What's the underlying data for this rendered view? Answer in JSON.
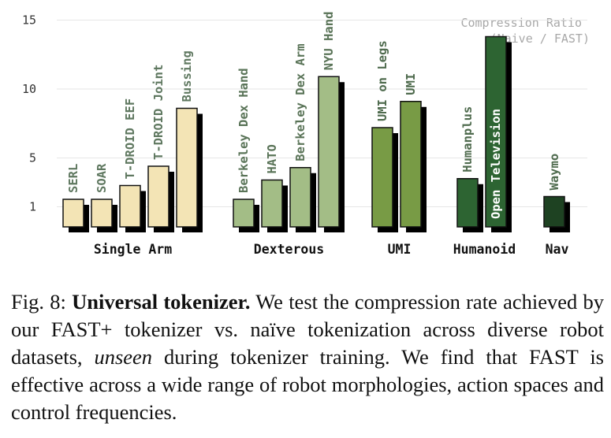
{
  "chart_data": {
    "type": "bar",
    "legend_title_line1": "Compression Ratio",
    "legend_title_line2": "(Naive / FAST)",
    "y_ticks": [
      1,
      5,
      10,
      15
    ],
    "ylim": [
      0,
      16
    ],
    "grid": true,
    "groups": [
      {
        "name": "Single Arm",
        "color": "#f3e4b5",
        "bars": [
          {
            "label": "SERL",
            "value": 2.0
          },
          {
            "label": "SOAR",
            "value": 2.0
          },
          {
            "label": "T-DROID EEF",
            "value": 3.0
          },
          {
            "label": "T-DROID Joint",
            "value": 4.4
          },
          {
            "label": "Bussing",
            "value": 8.6
          }
        ]
      },
      {
        "name": "Dexterous",
        "color": "#a3bd86",
        "bars": [
          {
            "label": "Berkeley Dex Hand",
            "value": 2.0
          },
          {
            "label": "HATO",
            "value": 3.4
          },
          {
            "label": "Berkeley Dex Arm",
            "value": 4.3
          },
          {
            "label": "NYU Hand",
            "value": 10.9
          }
        ]
      },
      {
        "name": "UMI",
        "color": "#789b45",
        "bars": [
          {
            "label": "UMI on Legs",
            "value": 7.2
          },
          {
            "label": "UMI",
            "value": 9.1
          }
        ]
      },
      {
        "name": "Humanoid",
        "color": "#2d6432",
        "bars": [
          {
            "label": "Humanplus",
            "value": 3.5
          },
          {
            "label": "Open Television",
            "value": 13.8
          }
        ]
      },
      {
        "name": "Nav",
        "color": "#1e4222",
        "bars": [
          {
            "label": "Waymo",
            "value": 2.2
          }
        ]
      }
    ]
  },
  "caption": {
    "fig_label": "Fig. 8:",
    "bold_title": "Universal tokenizer.",
    "text_part1": "We test the compression rate achieved by our FAST+ tokenizer vs. naïve tokenization across diverse robot datasets,",
    "italic_word": "unseen",
    "text_part2": "during tokenizer training. We find that FAST is effective across a wide range of robot morphologies, action spaces and control frequencies."
  }
}
